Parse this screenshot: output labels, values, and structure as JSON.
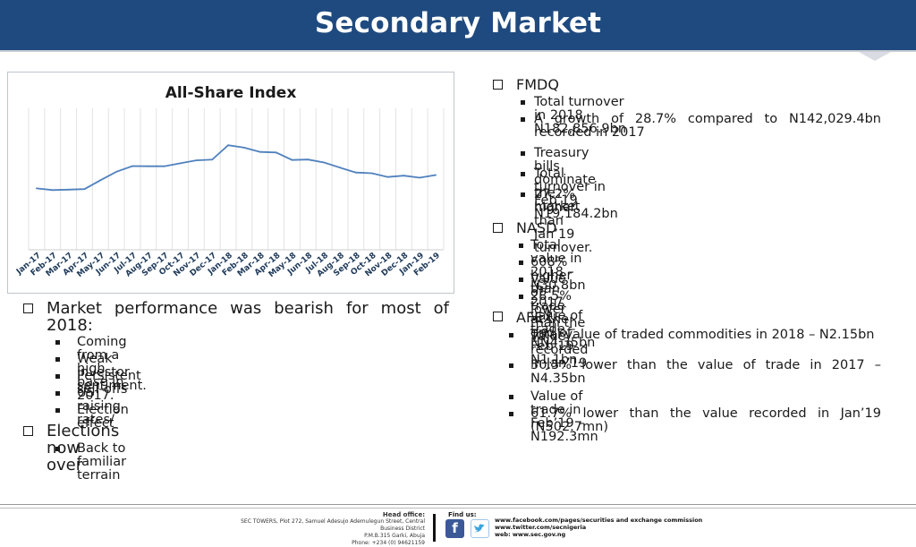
{
  "header": {
    "title": "Secondary Market"
  },
  "chart_data": {
    "type": "line",
    "title": "All-Share Index",
    "categories": [
      "Jan-17",
      "Feb-17",
      "Mar-17",
      "Apr-17",
      "May-17",
      "Jun-17",
      "Jul-17",
      "Aug-17",
      "Sep-17",
      "Oct-17",
      "Nov-17",
      "Dec-17",
      "Jan-18",
      "Feb-18",
      "Mar-18",
      "Apr-18",
      "May-18",
      "Jun-18",
      "Jul-18",
      "Aug-18",
      "Sep-18",
      "Oct-18",
      "Nov-18",
      "Dec-18",
      "Jan-19",
      "Feb-19"
    ],
    "values": [
      26036,
      25329,
      25516,
      25758,
      29498,
      33117,
      35505,
      35440,
      35439,
      36680,
      37944,
      38243,
      44344,
      43330,
      41504,
      41268,
      38104,
      38279,
      37017,
      34848,
      32766,
      32467,
      30874,
      31430,
      30557,
      31722
    ],
    "ylim": [
      0,
      60000
    ],
    "grid": true,
    "legend": "none",
    "line_color": "#4f81bd"
  },
  "left": {
    "bullets": [
      {
        "text": "Market performance was bearish for most of 2018:",
        "subs": [
          "Coming from a high base in 2017.",
          "Weak investor sentiment.",
          "Persistent sell-offs",
          "US raising rates/",
          "Election effect"
        ]
      },
      {
        "text": "Elections now over",
        "subs": [
          "Back to familiar terrain"
        ]
      }
    ]
  },
  "right": {
    "fmdq": {
      "title": "FMDQ",
      "items": [
        "Total turnover in 2018 N182,856.9bn",
        "A growth of 28.7% compared to N142,029.4bn recorded in 2017",
        "Treasury bills dominate the market",
        "Total turnover in Feb’19 N19,184.2bn",
        "27.2% higher than Jan’19 turnover."
      ]
    },
    "nasd": {
      "title": "NASD",
      "items": [
        "Total value in 2018 – N30.8bn",
        "608% higher than 2017 value of trade – NN4.35bn",
        "Value of trade at the end of Feb’19 N1.1bn.",
        "28.5% lower than the value recorded in Jan’19"
      ]
    },
    "afex": {
      "title": "AFEX",
      "items": [
        "Total value of traded commodities in 2018 – N2.15bn",
        "50.5% lower than the value of trade in 2017 – N4.35bn",
        "Value of trade in Feb’19 – N192.3mn",
        "61.7% lower than the value recorded in Jan’19 (N502.7mn)"
      ]
    }
  },
  "footer": {
    "office_heading": "Head office:",
    "office_lines": [
      "SEC TOWERS, Plot 272, Samuel Adesujo Ademulegun Street, Central",
      "Business District",
      "P.M.B.315 Garki, Abuja",
      "Phone: +234 (0) 94621159"
    ],
    "find_us": "Find us:",
    "links": [
      "www.facebook.com/pages/securities and exchange commission",
      "www.twitter.com/secnigeria",
      "web: www.sec.gov.ng"
    ],
    "facebook_icon": "facebook-icon",
    "twitter_icon": "twitter-icon"
  }
}
